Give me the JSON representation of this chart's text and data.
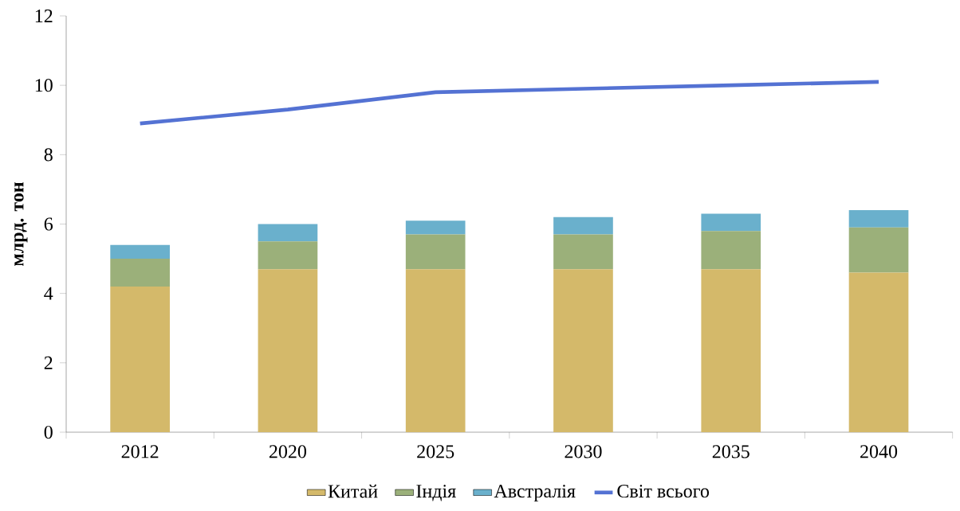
{
  "chart_data": {
    "type": "bar",
    "stacked": true,
    "ylabel": "млрд. тон",
    "categories": [
      "2012",
      "2020",
      "2025",
      "2030",
      "2035",
      "2040"
    ],
    "series": [
      {
        "name": "Китай",
        "color": "#d4b96a",
        "values": [
          4.2,
          4.7,
          4.7,
          4.7,
          4.7,
          4.6
        ]
      },
      {
        "name": "Індія",
        "color": "#9bb07a",
        "values": [
          0.8,
          0.8,
          1.0,
          1.0,
          1.1,
          1.3
        ]
      },
      {
        "name": "Австралія",
        "color": "#6ab0cc",
        "values": [
          0.4,
          0.5,
          0.4,
          0.5,
          0.5,
          0.5
        ]
      },
      {
        "name": "Світ всього",
        "type": "line",
        "color": "#5472d3",
        "values": [
          8.9,
          9.3,
          9.8,
          9.9,
          10.0,
          10.1
        ]
      }
    ],
    "ylim": [
      0,
      12
    ],
    "yticks": [
      0,
      2,
      4,
      6,
      8,
      10,
      12
    ],
    "legend": "bottom"
  }
}
